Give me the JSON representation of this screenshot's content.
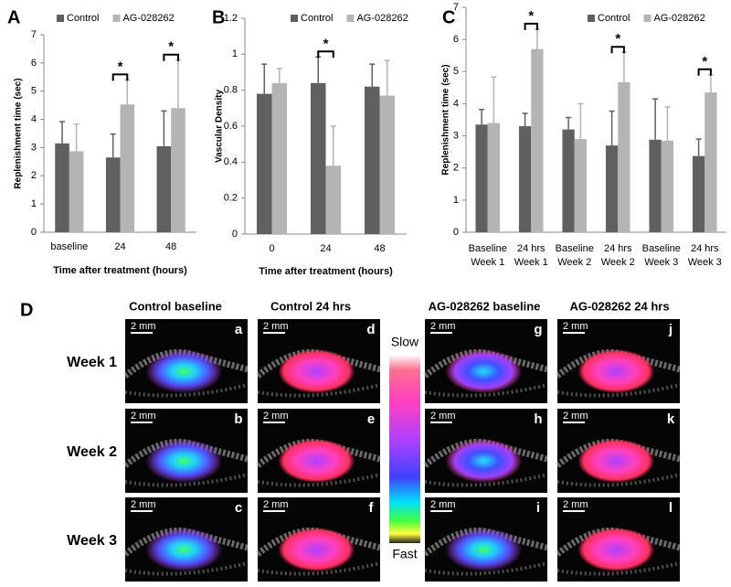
{
  "chart_data": [
    {
      "type": "bar",
      "panel_label": "A",
      "x_label": "Time after treatment (hours)",
      "y_label": "Replenishment time (sec)",
      "categories": [
        "baseline",
        "24",
        "48"
      ],
      "series": [
        {
          "name": "Control",
          "color": "#606060",
          "values": [
            3.15,
            2.65,
            3.05
          ],
          "errors": [
            0.77,
            0.83,
            1.25
          ]
        },
        {
          "name": "AG-028262",
          "color": "#b4b4b4",
          "values": [
            2.87,
            4.53,
            4.4
          ],
          "errors": [
            0.96,
            0.87,
            1.7
          ]
        }
      ],
      "ylim": [
        0,
        7
      ],
      "yticks": [
        0,
        1,
        2,
        3,
        4,
        5,
        6,
        7
      ],
      "legend": "top",
      "significant": [
        false,
        true,
        true
      ],
      "significance_label": "*"
    },
    {
      "type": "bar",
      "panel_label": "B",
      "x_label": "Time after treatment (hours)",
      "y_label": "Vascular Density",
      "categories": [
        "0",
        "24",
        "48"
      ],
      "series": [
        {
          "name": "Control",
          "color": "#606060",
          "values": [
            0.78,
            0.84,
            0.82
          ],
          "errors": [
            0.165,
            0.145,
            0.125
          ]
        },
        {
          "name": "AG-028262",
          "color": "#b4b4b4",
          "values": [
            0.84,
            0.38,
            0.77
          ],
          "errors": [
            0.08,
            0.22,
            0.195
          ]
        }
      ],
      "ylim": [
        0,
        1.2
      ],
      "yticks": [
        0,
        0.2,
        0.4,
        0.6,
        0.8,
        1,
        1.2
      ],
      "legend": "top",
      "significant": [
        false,
        true,
        false
      ],
      "significance_label": "*"
    },
    {
      "type": "bar",
      "panel_label": "C",
      "y_label": "Replenishment time (sec)",
      "categories": [
        [
          "Baseline",
          "Week 1"
        ],
        [
          "24 hrs",
          "Week 1"
        ],
        [
          "Baseline",
          "Week 2"
        ],
        [
          "24 hrs",
          "Week 2"
        ],
        [
          "Baseline",
          "Week 3"
        ],
        [
          "24 hrs",
          "Week 3"
        ]
      ],
      "series": [
        {
          "name": "Control",
          "color": "#606060",
          "values": [
            3.35,
            3.3,
            3.2,
            2.7,
            2.88,
            2.37
          ],
          "errors": [
            0.47,
            0.4,
            0.37,
            1.07,
            1.27,
            0.53
          ]
        },
        {
          "name": "AG-028262",
          "color": "#b4b4b4",
          "values": [
            3.4,
            5.7,
            2.9,
            4.67,
            2.85,
            4.35
          ],
          "errors": [
            1.43,
            0.62,
            1.1,
            0.93,
            1.05,
            0.55
          ]
        }
      ],
      "ylim": [
        0,
        7
      ],
      "yticks": [
        0,
        1,
        2,
        3,
        4,
        5,
        6,
        7
      ],
      "legend": "top",
      "significant": [
        false,
        true,
        false,
        true,
        false,
        true
      ],
      "significance_label": "*"
    }
  ],
  "panel_d": {
    "label": "D",
    "columns": [
      "Control baseline",
      "Control 24 hrs",
      "AG-028262 baseline",
      "AG-028262 24 hrs"
    ],
    "rows": [
      "Week 1",
      "Week 2",
      "Week 3"
    ],
    "image_letters": [
      [
        "a",
        "d",
        "g",
        "j"
      ],
      [
        "b",
        "e",
        "h",
        "k"
      ],
      [
        "c",
        "f",
        "i",
        "l"
      ]
    ],
    "scale_bar": "2 mm",
    "colorbar": {
      "top": "Slow",
      "bottom": "Fast"
    }
  }
}
